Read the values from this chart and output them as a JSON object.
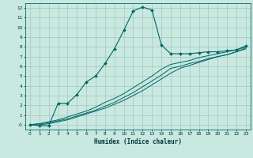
{
  "xlabel": "Humidex (Indice chaleur)",
  "background_color": "#c8e8e0",
  "grid_color": "#a0c8c0",
  "line_color": "#006666",
  "xlim": [
    -0.5,
    23.5
  ],
  "ylim": [
    -0.5,
    12.5
  ],
  "xticks": [
    0,
    1,
    2,
    3,
    4,
    5,
    6,
    7,
    8,
    9,
    10,
    11,
    12,
    13,
    14,
    15,
    16,
    17,
    18,
    19,
    20,
    21,
    22,
    23
  ],
  "yticks": [
    0,
    1,
    2,
    3,
    4,
    5,
    6,
    7,
    8,
    9,
    10,
    11,
    12
  ],
  "ytick_labels": [
    "-0",
    "1",
    "2",
    "3",
    "4",
    "5",
    "6",
    "7",
    "8",
    "9",
    "10",
    "11",
    "12"
  ],
  "line1_x": [
    0,
    1,
    2,
    3,
    4,
    5,
    6,
    7,
    8,
    9,
    10,
    11,
    12,
    13,
    14,
    15,
    16,
    17,
    18,
    19,
    20,
    21,
    22,
    23
  ],
  "line1_y": [
    0,
    -0.1,
    -0.1,
    2.2,
    2.2,
    3.1,
    4.4,
    5.0,
    6.3,
    7.8,
    9.7,
    11.7,
    12.1,
    11.8,
    8.2,
    7.3,
    7.3,
    7.3,
    7.4,
    7.5,
    7.5,
    7.6,
    7.7,
    8.1
  ],
  "line2_x": [
    0,
    1,
    2,
    3,
    4,
    5,
    6,
    7,
    8,
    9,
    10,
    11,
    12,
    13,
    14,
    15,
    16,
    17,
    18,
    19,
    20,
    21,
    22,
    23
  ],
  "line2_y": [
    0,
    0.1,
    0.2,
    0.4,
    0.6,
    0.9,
    1.2,
    1.5,
    1.9,
    2.3,
    2.8,
    3.3,
    3.9,
    4.5,
    5.1,
    5.8,
    6.0,
    6.3,
    6.5,
    6.8,
    7.0,
    7.2,
    7.5,
    7.9
  ],
  "line3_x": [
    0,
    1,
    2,
    3,
    4,
    5,
    6,
    7,
    8,
    9,
    10,
    11,
    12,
    13,
    14,
    15,
    16,
    17,
    18,
    19,
    20,
    21,
    22,
    23
  ],
  "line3_y": [
    0,
    0.1,
    0.3,
    0.5,
    0.8,
    1.1,
    1.4,
    1.8,
    2.3,
    2.7,
    3.2,
    3.8,
    4.4,
    5.0,
    5.7,
    6.2,
    6.4,
    6.6,
    6.9,
    7.1,
    7.3,
    7.5,
    7.7,
    8.0
  ],
  "line4_x": [
    0,
    1,
    2,
    3,
    4,
    5,
    6,
    7,
    8,
    9,
    10,
    11,
    12,
    13,
    14,
    15,
    16,
    17,
    18,
    19,
    20,
    21,
    22,
    23
  ],
  "line4_y": [
    0,
    0.0,
    0.1,
    0.3,
    0.5,
    0.8,
    1.1,
    1.4,
    1.7,
    2.1,
    2.5,
    3.0,
    3.5,
    4.1,
    4.7,
    5.3,
    5.8,
    6.1,
    6.4,
    6.7,
    7.0,
    7.2,
    7.5,
    7.8
  ]
}
